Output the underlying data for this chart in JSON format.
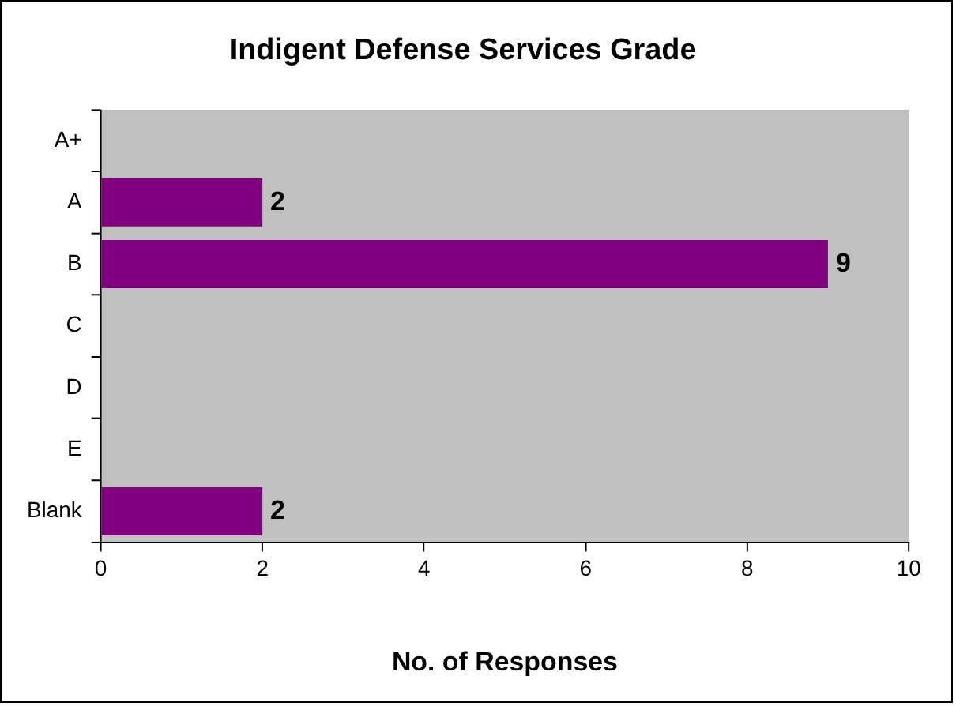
{
  "chart_data": {
    "type": "bar",
    "orientation": "horizontal",
    "title": "Indigent Defense Services Grade",
    "xlabel": "No. of Responses",
    "categories": [
      "A+",
      "A",
      "B",
      "C",
      "D",
      "E",
      "Blank"
    ],
    "values": [
      0,
      2,
      9,
      0,
      0,
      0,
      2
    ],
    "value_labels": [
      null,
      "2",
      "9",
      null,
      null,
      null,
      "2"
    ],
    "color": "#800080",
    "xlim": [
      0,
      10
    ],
    "xticks": [
      0,
      2,
      4,
      6,
      8,
      10
    ],
    "grid": false,
    "legend": false
  }
}
